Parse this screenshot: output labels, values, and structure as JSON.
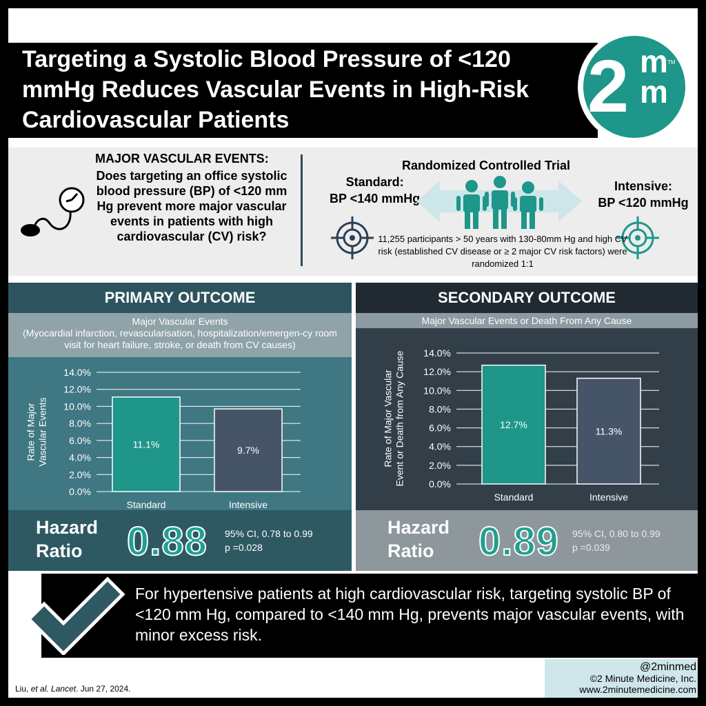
{
  "title": "Targeting a Systolic Blood Pressure of <120 mmHg Reduces Vascular Events in High-Risk Cardiovascular Patients",
  "logo": {
    "two": "2",
    "m": "m",
    "tm": "TM"
  },
  "question": {
    "heading": "MAJOR VASCULAR EVENTS:",
    "text": "Does targeting an office systolic blood pressure (BP) of <120 mm Hg prevent more major vascular events in patients with high cardiovascular (CV) risk?"
  },
  "design": {
    "title": "Randomized Controlled Trial",
    "standard_label": "Standard:",
    "standard_target": "BP <140 mmHg",
    "intensive_label": "Intensive:",
    "intensive_target": "BP <120 mmHg",
    "participants": "11,255 participants > 50 years with 130-80mm Hg and high CV risk (established CV disease or ≥ 2 major CV risk factors) were randomized 1:1"
  },
  "primary": {
    "heading": "PRIMARY OUTCOME",
    "subtitle": "Major Vascular Events",
    "definition": "(Myocardial infarction, revascularisation, hospitalization/emergen-cy room visit for heart failure, stroke, or death from CV causes)",
    "hr_label": "Hazard Ratio",
    "hr_value": "0.88",
    "ci": "95% CI, 0.78 to 0.99",
    "p": "p =0.028"
  },
  "secondary": {
    "heading": "SECONDARY OUTCOME",
    "subtitle": "Major Vascular Events or Death From Any Cause",
    "hr_label": "Hazard Ratio",
    "hr_value": "0.89",
    "ci": "95% CI, 0.80 to 0.99",
    "p": "p =0.039"
  },
  "chart_data": [
    {
      "type": "bar",
      "categories": [
        "Standard",
        "Intensive"
      ],
      "values": [
        11.1,
        9.7
      ],
      "data_labels": [
        "11.1%",
        "9.7%"
      ],
      "ylabel": "Rate of Major Vascular Events",
      "ylim": [
        0,
        14
      ],
      "yticks": [
        "0.0%",
        "2.0%",
        "4.0%",
        "6.0%",
        "8.0%",
        "10.0%",
        "12.0%",
        "14.0%"
      ],
      "grid": true,
      "colors": [
        "#1e968a",
        "#465468"
      ]
    },
    {
      "type": "bar",
      "categories": [
        "Standard",
        "Intensive"
      ],
      "values": [
        12.7,
        11.3
      ],
      "data_labels": [
        "12.7%",
        "11.3%"
      ],
      "ylabel": "Rate of Major Vascular Event or Death from Any Cause",
      "ylim": [
        0,
        14
      ],
      "yticks": [
        "0.0%",
        "2.0%",
        "4.0%",
        "6.0%",
        "8.0%",
        "10.0%",
        "12.0%",
        "14.0%"
      ],
      "grid": true,
      "colors": [
        "#1e968a",
        "#465468"
      ]
    }
  ],
  "conclusion": "For hypertensive patients at high cardiovascular risk, targeting systolic BP of <120 mm Hg, compared to <140 mm Hg, prevents major vascular events, with minor excess risk.",
  "citation": {
    "handle": "@2minmed",
    "copyright": "©2 Minute Medicine, Inc.",
    "url": "www.2minutemedicine.com"
  },
  "reference": {
    "authors": "Liu, ",
    "etal": "et al.",
    "journal": "Lancet",
    "date": ". Jun 27, 2024."
  }
}
